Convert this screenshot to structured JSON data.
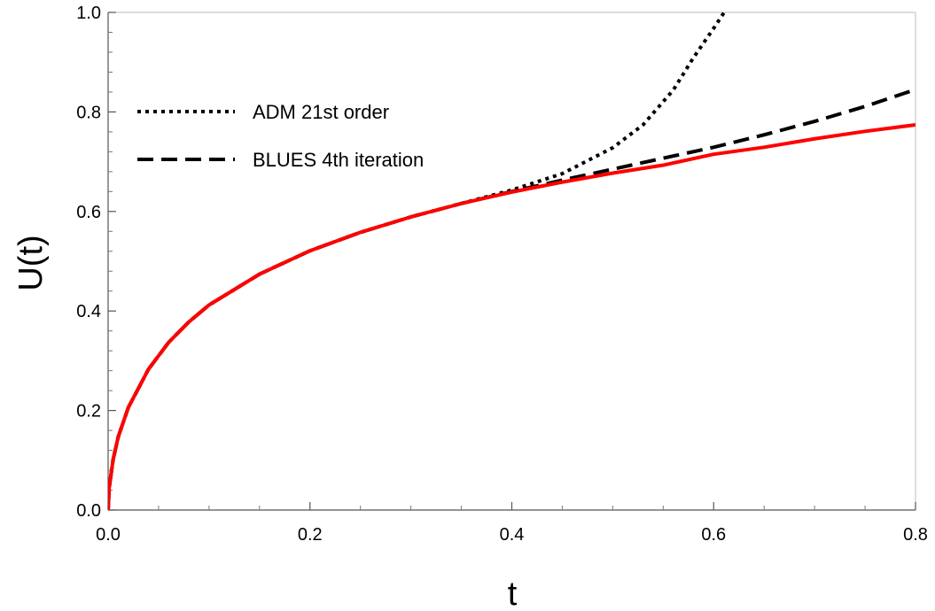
{
  "chart_data": {
    "type": "line",
    "title": "",
    "xlabel": "t",
    "ylabel": "U(t)",
    "xlim": [
      0.0,
      0.8
    ],
    "ylim": [
      0.0,
      1.0
    ],
    "x_ticks": [
      0.0,
      0.2,
      0.4,
      0.6,
      0.8
    ],
    "x_tick_labels": [
      "0.0",
      "0.2",
      "0.4",
      "0.6",
      "0.8"
    ],
    "y_ticks": [
      0.0,
      0.2,
      0.4,
      0.6,
      0.8,
      1.0
    ],
    "y_tick_labels": [
      "0.0",
      "0.2",
      "0.4",
      "0.6",
      "0.8",
      "1.0"
    ],
    "grid": false,
    "legend_position": "top-left",
    "series": [
      {
        "name": "ADM 21st order",
        "style": "dotted",
        "color": "#000000",
        "x": [
          0.0,
          0.001,
          0.005,
          0.01,
          0.02,
          0.04,
          0.06,
          0.08,
          0.1,
          0.15,
          0.2,
          0.25,
          0.3,
          0.35,
          0.4,
          0.45,
          0.5,
          0.53,
          0.56,
          0.58,
          0.6,
          0.612
        ],
        "y": [
          0.0,
          0.044,
          0.102,
          0.147,
          0.206,
          0.283,
          0.337,
          0.378,
          0.412,
          0.474,
          0.521,
          0.558,
          0.589,
          0.616,
          0.643,
          0.676,
          0.728,
          0.774,
          0.844,
          0.909,
          0.968,
          1.005
        ]
      },
      {
        "name": "BLUES 4th iteration",
        "style": "dashed",
        "color": "#000000",
        "x": [
          0.0,
          0.001,
          0.005,
          0.01,
          0.02,
          0.04,
          0.06,
          0.08,
          0.1,
          0.15,
          0.2,
          0.25,
          0.3,
          0.35,
          0.4,
          0.45,
          0.5,
          0.55,
          0.6,
          0.65,
          0.7,
          0.75,
          0.8
        ],
        "y": [
          0.0,
          0.044,
          0.102,
          0.147,
          0.206,
          0.283,
          0.337,
          0.378,
          0.412,
          0.474,
          0.521,
          0.558,
          0.589,
          0.616,
          0.64,
          0.663,
          0.685,
          0.707,
          0.729,
          0.754,
          0.781,
          0.811,
          0.845
        ]
      },
      {
        "name": "",
        "style": "solid",
        "color": "#ff0000",
        "x": [
          0.0,
          0.001,
          0.005,
          0.01,
          0.02,
          0.04,
          0.06,
          0.08,
          0.1,
          0.15,
          0.2,
          0.25,
          0.3,
          0.35,
          0.4,
          0.45,
          0.5,
          0.55,
          0.6,
          0.65,
          0.7,
          0.75,
          0.8
        ],
        "y": [
          0.0,
          0.044,
          0.102,
          0.147,
          0.206,
          0.283,
          0.337,
          0.378,
          0.412,
          0.474,
          0.521,
          0.558,
          0.589,
          0.616,
          0.639,
          0.659,
          0.677,
          0.693,
          0.715,
          0.729,
          0.746,
          0.761,
          0.774
        ]
      }
    ]
  }
}
